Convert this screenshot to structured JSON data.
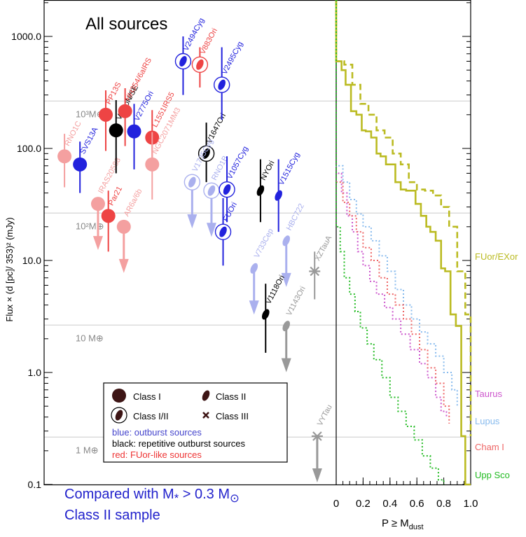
{
  "chart_data": {
    "type": "scatter",
    "title": "All sources",
    "ylabel": "Flux × (d [pc]/ 353)² (mJy)",
    "y_scale": "log",
    "ylim": [
      0.1,
      2000
    ],
    "y_ticks": [
      "1000.0",
      "100.0",
      "10.0",
      "1.0",
      "0.1"
    ],
    "mass_lines": [
      {
        "label": "10³M⊕",
        "flux": 265
      },
      {
        "label": "10²M⊕",
        "flux": 26.5
      },
      {
        "label": "10 M⊕",
        "flux": 2.65
      },
      {
        "label": "1 M⊕",
        "flux": 0.265
      }
    ],
    "points": [
      {
        "name": "RNO1C",
        "x": 0.6,
        "flux": 85,
        "shape": "circle",
        "color": "#f4a0a0",
        "err": [
          45,
          135
        ]
      },
      {
        "name": "SVS13A",
        "x": 1.2,
        "flux": 72,
        "shape": "circle",
        "color": "#2222dd",
        "err": [
          40,
          115
        ]
      },
      {
        "name": "IRAS20588",
        "x": 1.9,
        "flux": 32,
        "shape": "circle",
        "color": "#f4a0a0",
        "upper": true
      },
      {
        "name": "PP13S",
        "x": 2.2,
        "flux": 200,
        "shape": "circle",
        "color": "#ee4444",
        "err": [
          95,
          330
        ]
      },
      {
        "name": "Par21",
        "x": 2.3,
        "flux": 25,
        "shape": "circle",
        "color": "#ee4444",
        "err": [
          12,
          42
        ]
      },
      {
        "name": "V1MoN/SE",
        "x": 2.6,
        "flux": 145,
        "shape": "circle",
        "color": "#000000",
        "err": [
          60,
          270
        ]
      },
      {
        "name": "AR6a/6b",
        "x": 2.9,
        "flux": 20,
        "shape": "circle",
        "color": "#f4a0a0",
        "upper": true
      },
      {
        "name": "HH354/6aIRS",
        "x": 2.95,
        "flux": 215,
        "shape": "circle",
        "color": "#ee4444",
        "err": [
          105,
          345
        ]
      },
      {
        "name": "V2775Ori",
        "x": 3.3,
        "flux": 142,
        "shape": "circle",
        "color": "#2222dd",
        "err": [
          65,
          250
        ]
      },
      {
        "name": "L1551IRS5",
        "x": 4.0,
        "flux": 125,
        "shape": "circle",
        "color": "#ee4444",
        "err": [
          65,
          220
        ]
      },
      {
        "name": "NGC2071MM3",
        "x": 4.0,
        "flux": 72,
        "shape": "circle",
        "color": "#f4a0a0",
        "err": [
          35,
          140
        ]
      },
      {
        "name": "V2494Cyg",
        "x": 5.2,
        "flux": 600,
        "shape": "ringed-ellipse",
        "color": "#2222dd",
        "err": [
          300,
          1000
        ]
      },
      {
        "name": "V883Ori",
        "x": 5.85,
        "flux": 560,
        "shape": "ringed-ellipse",
        "color": "#ee4444",
        "err": [
          350,
          800
        ]
      },
      {
        "name": "V1647Ori",
        "x": 6.1,
        "flux": 90,
        "shape": "ringed-ellipse",
        "color": "#000000",
        "err": [
          50,
          170
        ]
      },
      {
        "name": "V2495Cyg",
        "x": 6.7,
        "flux": 370,
        "shape": "ringed-ellipse",
        "color": "#2222dd",
        "err": [
          180,
          800
        ]
      },
      {
        "name": "V1735Cyg",
        "x": 5.55,
        "flux": 50,
        "shape": "ringed-ellipse",
        "color": "#aab0ee",
        "upper": true
      },
      {
        "name": "RNO1B",
        "x": 6.3,
        "flux": 42,
        "shape": "ringed-ellipse",
        "color": "#aab0ee",
        "upper": true
      },
      {
        "name": "V1057Cyg",
        "x": 6.9,
        "flux": 43,
        "shape": "ringed-ellipse",
        "color": "#2222dd",
        "err": [
          22,
          85
        ]
      },
      {
        "name": "FUOri",
        "x": 6.75,
        "flux": 18,
        "shape": "ringed-ellipse",
        "color": "#2222dd",
        "err": [
          9,
          36
        ]
      },
      {
        "name": "NYOri",
        "x": 8.2,
        "flux": 42,
        "shape": "ellipse",
        "color": "#000000",
        "err": [
          22,
          80
        ]
      },
      {
        "name": "V1515Cyg",
        "x": 8.9,
        "flux": 38,
        "shape": "ellipse",
        "color": "#2222dd",
        "err": [
          18,
          80
        ]
      },
      {
        "name": "V733Cep",
        "x": 7.95,
        "flux": 8.5,
        "shape": "ellipse",
        "color": "#aab0ee",
        "upper": true
      },
      {
        "name": "HBC722",
        "x": 9.2,
        "flux": 15,
        "shape": "ellipse",
        "color": "#aab0ee",
        "upper": true
      },
      {
        "name": "V1118Ori",
        "x": 8.4,
        "flux": 3.3,
        "shape": "ellipse",
        "color": "#000000",
        "err": [
          1.5,
          6.2
        ]
      },
      {
        "name": "V1143Ori",
        "x": 9.2,
        "flux": 2.6,
        "shape": "ellipse",
        "color": "#999999",
        "upper": true
      },
      {
        "name": "XZTauA",
        "x": 10.3,
        "flux": 8.0,
        "shape": "star",
        "color": "#999999",
        "err": [
          4.5,
          12
        ]
      },
      {
        "name": "VYTau",
        "x": 10.4,
        "flux": 0.27,
        "shape": "star",
        "color": "#999999",
        "upper": true
      }
    ],
    "legend": {
      "symbols": [
        "Class I",
        "Class II",
        "Class I/II",
        "Class III"
      ],
      "lines": [
        {
          "text": "blue: outburst sources",
          "color": "#4444cc"
        },
        {
          "text": "black: repetitive outburst sources",
          "color": "#000000"
        },
        {
          "text": "red: FUor-like sources",
          "color": "#ee3333"
        }
      ]
    },
    "cdf_panel": {
      "xlabel": "P ≥ Mdust",
      "x_ticks": [
        "0",
        "0.2",
        "0.4",
        "0.6",
        "0.8",
        "1.0"
      ],
      "xlim": [
        0,
        1
      ],
      "series": [
        {
          "name": "FUor/EXor",
          "color": "#bbbb22",
          "style": "solid",
          "x": [
            0.0,
            0.04,
            0.07,
            0.11,
            0.15,
            0.19,
            0.22,
            0.26,
            0.3,
            0.33,
            0.37,
            0.41,
            0.44,
            0.48,
            0.52,
            0.56,
            0.59,
            0.63,
            0.67,
            0.7,
            0.74,
            0.78,
            0.81,
            0.85,
            0.89,
            0.93,
            0.96,
            1.0
          ],
          "y": [
            600,
            500,
            370,
            215,
            200,
            145,
            142,
            125,
            90,
            85,
            72,
            72,
            50,
            43,
            42,
            42,
            32,
            25,
            20,
            18,
            15,
            8.5,
            8.0,
            3.3,
            2.6,
            0.27,
            0.1,
            0.1
          ]
        },
        {
          "name": "FUor/EXor (dashed)",
          "color": "#bbbb22",
          "style": "dashed",
          "x": [
            0.0,
            0.06,
            0.12,
            0.18,
            0.24,
            0.3,
            0.36,
            0.42,
            0.48,
            0.54,
            0.6,
            0.66,
            0.72,
            0.78,
            0.84,
            0.9,
            0.96,
            1.0
          ],
          "y": [
            600,
            560,
            370,
            250,
            200,
            145,
            125,
            90,
            72,
            50,
            43,
            42,
            38,
            30,
            20,
            8.0,
            3.3,
            0.27
          ]
        },
        {
          "name": "Taurus",
          "color": "#cc55cc",
          "style": "dotted",
          "x": [
            0.0,
            0.04,
            0.08,
            0.12,
            0.16,
            0.2,
            0.25,
            0.3,
            0.36,
            0.42,
            0.48,
            0.55,
            0.62,
            0.68,
            0.74,
            0.78,
            0.82
          ],
          "y": [
            60,
            40,
            25,
            18,
            12,
            9,
            6.5,
            5,
            3.8,
            3,
            2.2,
            1.6,
            1.2,
            0.9,
            0.6,
            0.45,
            0.4
          ]
        },
        {
          "name": "Lupus",
          "color": "#88bbee",
          "style": "dotted",
          "x": [
            0.0,
            0.05,
            0.1,
            0.15,
            0.2,
            0.26,
            0.32,
            0.38,
            0.44,
            0.5,
            0.56,
            0.62,
            0.68,
            0.74,
            0.8,
            0.86,
            0.9
          ],
          "y": [
            70,
            50,
            35,
            26,
            20,
            15,
            11,
            8,
            5.5,
            4,
            3,
            2.3,
            1.8,
            1.4,
            1.0,
            0.7,
            0.5
          ]
        },
        {
          "name": "Cham I",
          "color": "#ee6666",
          "style": "dotted",
          "x": [
            0.0,
            0.05,
            0.1,
            0.15,
            0.2,
            0.26,
            0.32,
            0.38,
            0.44,
            0.5,
            0.56,
            0.62,
            0.68,
            0.74,
            0.8,
            0.84
          ],
          "y": [
            50,
            33,
            25,
            18,
            13,
            10,
            7,
            5,
            4,
            3,
            2.2,
            1.6,
            1.1,
            0.8,
            0.5,
            0.35
          ]
        },
        {
          "name": "Upp Sco",
          "color": "#22bb22",
          "style": "dotted",
          "x": [
            0.0,
            0.03,
            0.06,
            0.1,
            0.14,
            0.18,
            0.23,
            0.28,
            0.34,
            0.4,
            0.46,
            0.52,
            0.58,
            0.64,
            0.7,
            0.76,
            0.8
          ],
          "y": [
            20,
            12,
            7,
            5,
            3.5,
            2.5,
            1.8,
            1.3,
            0.9,
            0.6,
            0.45,
            0.33,
            0.25,
            0.18,
            0.14,
            0.11,
            0.1
          ]
        }
      ]
    },
    "note": {
      "line1_prefix": "Compared with M",
      "line1_sub": "*",
      "line1_mid": " > 0.3 M",
      "line1_sym": "⊙",
      "line2": "Class II sample"
    }
  }
}
